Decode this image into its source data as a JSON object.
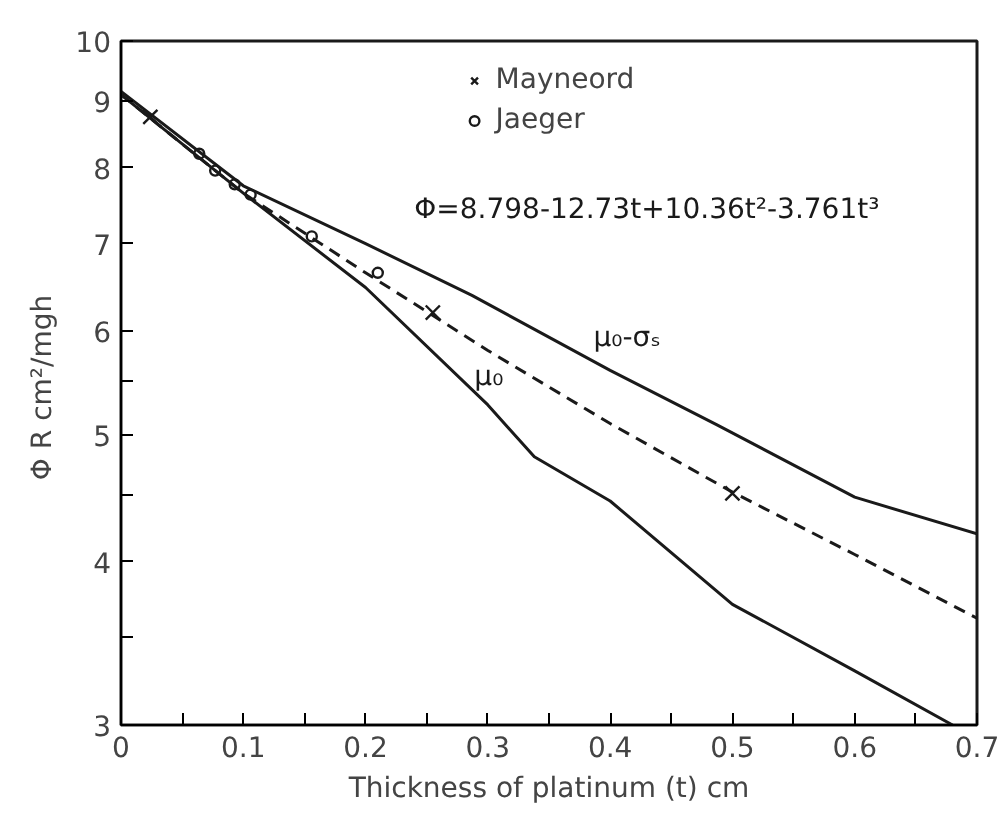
{
  "chart_data": {
    "type": "line",
    "xlabel": "Thickness of platinum (t) cm",
    "ylabel": "Φ  R cm²/mgh",
    "log": "y",
    "xlim": [
      0,
      0.7
    ],
    "ylim": [
      3,
      10
    ],
    "xticks": [
      0,
      {
        "value": 0.05,
        "label": null
      },
      0.1,
      {
        "value": 0.15,
        "label": null
      },
      0.2,
      {
        "value": 0.25,
        "label": null
      },
      0.3,
      {
        "value": 0.35,
        "label": null
      },
      0.4,
      {
        "value": 0.45,
        "label": null
      },
      0.5,
      {
        "value": 0.55,
        "label": null
      },
      0.6,
      {
        "value": 0.65,
        "label": null
      },
      0.7
    ],
    "yticks": [
      3,
      {
        "value": 3.5,
        "label": null
      },
      4,
      {
        "value": 4.5,
        "label": null
      },
      5,
      {
        "value": 5.5,
        "label": null
      },
      6,
      7,
      8,
      9,
      10
    ],
    "grid": false,
    "legend": "top",
    "series": [
      {
        "color": "#1a1a1a",
        "line_style": "solid",
        "marker": "none",
        "x": [
          0,
          0.1,
          0.2,
          0.287,
          0.4,
          0.487,
          0.6,
          0.7
        ],
        "values": [
          9.15,
          7.75,
          7.0,
          6.39,
          5.6,
          5.09,
          4.48,
          4.2
        ]
      },
      {
        "color": "#1a1a1a",
        "line_style": "dashed",
        "marker": "none",
        "x": [
          0,
          0.1,
          0.2,
          0.3,
          0.4,
          0.5,
          0.6,
          0.7
        ],
        "values": [
          9.1,
          7.65,
          6.65,
          5.8,
          5.1,
          4.52,
          4.05,
          3.62
        ]
      },
      {
        "color": "#1a1a1a",
        "line_style": "solid",
        "marker": "none",
        "x": [
          0,
          0.1,
          0.2,
          0.3,
          0.338,
          0.4,
          0.5,
          0.6,
          0.68
        ],
        "values": [
          9.1,
          7.65,
          6.48,
          5.27,
          4.81,
          4.45,
          3.71,
          3.3,
          3.0
        ]
      },
      {
        "name": "Mayneord",
        "type": "scatter",
        "color": "#1a1a1a",
        "marker": "cross",
        "x": [
          0.024,
          0.255,
          0.5
        ],
        "values": [
          8.75,
          6.2,
          4.51
        ]
      },
      {
        "name": "Jaeger",
        "type": "scatter",
        "color": "#1a1a1a",
        "marker": "circle",
        "x": [
          0.064,
          0.077,
          0.093,
          0.106,
          0.156,
          0.21
        ],
        "values": [
          8.2,
          7.96,
          7.77,
          7.63,
          7.09,
          6.65
        ]
      }
    ],
    "annotations": [
      {
        "text": "Φ=8.798-12.73t+10.36t²-3.761t³",
        "x": 0.23,
        "y": 6.5
      },
      {
        "text": "μ₀-σₛ",
        "x": 0.37,
        "y": 5.85
      },
      {
        "text": "μ₀",
        "x": 0.338,
        "y": 4.81
      }
    ]
  }
}
